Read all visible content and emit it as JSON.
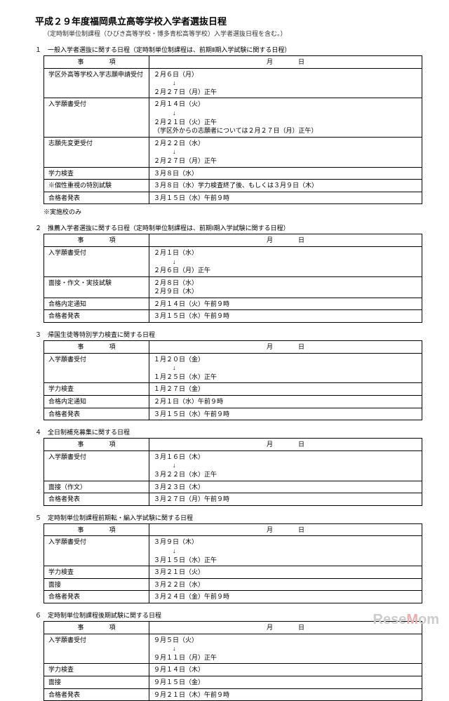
{
  "title": "平成２９年度福岡県立高等学校入学者選抜日程",
  "subtitle": "（定時制単位制課程（ひびき高等学校・博多青松高等学校）入学者選抜日程を含む。）",
  "sections": [
    {
      "title": "１　一般入学者選抜に関する日程（定時制単位制課程は、前期Ⅱ期入学試験に関する日程）",
      "header_item": "事　　　　項",
      "header_date": "月　　　　日",
      "rows": [
        {
          "item": "学区外高等学校入学志願申請受付",
          "date": "２月６日（月）\n　　　↓\n２月２７日（月）正午"
        },
        {
          "item": "入学願書受付",
          "date": "２月１４日（火）\n　　　↓\n２月２１日（火）正午\n（学区外からの志願者については２月２７日（月）正午）"
        },
        {
          "item": "志願先変更受付",
          "date": "２月２２日（水）\n　　　↓\n２月２７日（月）正午"
        },
        {
          "item": "学力検査",
          "date": "３月８日（水）"
        },
        {
          "item": "※個性重視の特別試験",
          "date": "３月８日（水）学力検査終了後、もしくは３月９日（木）"
        },
        {
          "item": "合格者発表",
          "date": "３月１５日（水）午前９時"
        }
      ],
      "note": "※実施校のみ"
    },
    {
      "title": "２　推薦入学者選抜に関する日程（定時制単位制課程は、前期Ⅰ期入学試験に関する日程）",
      "header_item": "事　　　　項",
      "header_date": "月　　　　日",
      "rows": [
        {
          "item": "入学願書受付",
          "date": "２月１日（水）\n　　　↓\n２月６日（月）正午"
        },
        {
          "item": "面接・作文・実技試験",
          "date": "２月８日（水）\n２月９日（木）"
        },
        {
          "item": "合格内定通知",
          "date": "２月１４日（火）午前９時"
        },
        {
          "item": "合格者発表",
          "date": "３月１５日（水）午前９時"
        }
      ]
    },
    {
      "title": "３　帰国生徒等特別学力検査に関する日程",
      "header_item": "事　　　　項",
      "header_date": "月　　　　日",
      "rows": [
        {
          "item": "入学願書受付",
          "date": "１月２０日（金）\n　　　↓\n１月２５日（水）正午"
        },
        {
          "item": "学力検査",
          "date": "１月２７日（金）"
        },
        {
          "item": "合格内定通知",
          "date": "２月１日（水）午前９時"
        },
        {
          "item": "合格者発表",
          "date": "３月１５日（水）午前９時"
        }
      ]
    },
    {
      "title": "４　全日制補充募集に関する日程",
      "header_item": "事　　　　項",
      "header_date": "月　　　　日",
      "rows": [
        {
          "item": "入学願書受付",
          "date": "３月１６日（木）\n　　　↓\n３月２２日（水）正午"
        },
        {
          "item": "面接（作文）",
          "date": "３月２３日（木）"
        },
        {
          "item": "合格者発表",
          "date": "３月２７日（月）午前９時"
        }
      ]
    },
    {
      "title": "５　定時制単位制課程前期転・編入学試験に関する日程",
      "header_item": "事　　　　項",
      "header_date": "月　　　　日",
      "rows": [
        {
          "item": "入学願書受付",
          "date": "３月９日（木）\n　　　↓\n３月１５日（水）正午"
        },
        {
          "item": "学力検査",
          "date": "３月２１日（火）"
        },
        {
          "item": "面接",
          "date": "３月２２日（水）"
        },
        {
          "item": "合格者発表",
          "date": "３月２４日（金）午前９時"
        }
      ]
    },
    {
      "title": "６　定時制単位制課程後期試験に関する日程",
      "header_item": "事　　　　項",
      "header_date": "月　　　　日",
      "rows": [
        {
          "item": "入学願書受付",
          "date": "９月５日（火）\n　　　↓\n９月１１日（月）正午"
        },
        {
          "item": "学力検査",
          "date": "９月１４日（木）"
        },
        {
          "item": "面接",
          "date": "９月１５日（金）"
        },
        {
          "item": "合格者発表",
          "date": "９月２１日（木）午前９時"
        }
      ]
    }
  ],
  "watermark_text1": "Rese",
  "watermark_text2": "M",
  "watermark_text3": "om"
}
